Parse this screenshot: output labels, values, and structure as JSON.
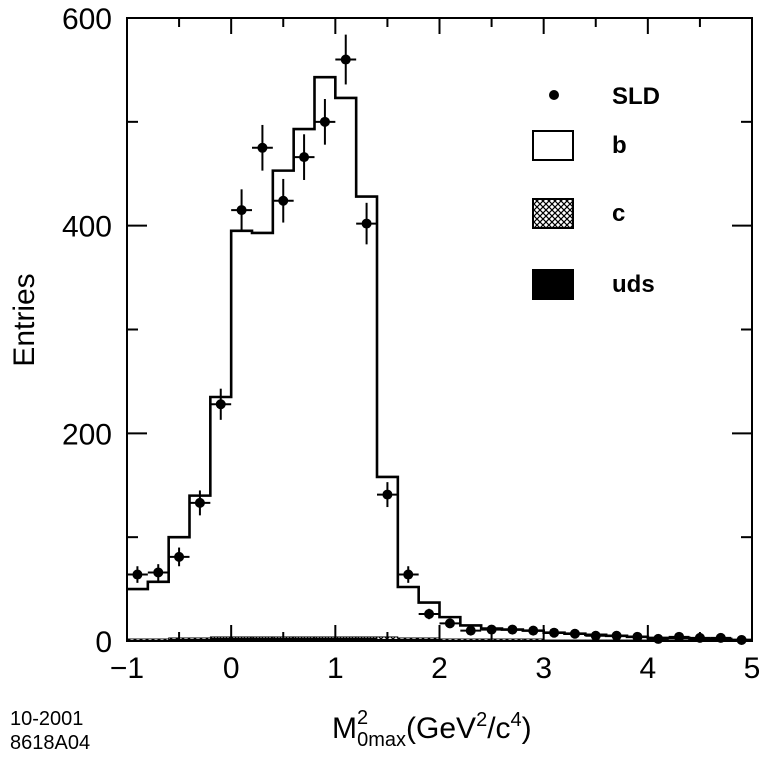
{
  "chart_data": {
    "type": "histogram",
    "xlabel_parts": {
      "base": "M",
      "sup": "2",
      "sub": "0max",
      "unit_open": "(GeV",
      "unit_sup": "2",
      "unit_mid": "/c",
      "unit_sup2": "4",
      "unit_close": ")"
    },
    "ylabel": "Entries",
    "xlim": [
      -1,
      5
    ],
    "ylim": [
      0,
      600
    ],
    "x_ticks": [
      "-1",
      "0",
      "1",
      "2",
      "3",
      "4",
      "5"
    ],
    "y_ticks": [
      "0",
      "200",
      "400",
      "600"
    ],
    "bin_edges": [
      -1.0,
      -0.8,
      -0.6,
      -0.4,
      -0.2,
      0.0,
      0.2,
      0.4,
      0.6,
      0.8,
      1.0,
      1.2,
      1.4,
      1.6,
      1.8,
      2.0,
      2.2,
      2.4,
      2.6,
      2.8,
      3.0,
      3.2,
      3.4,
      3.6,
      3.8,
      4.0,
      4.2,
      4.4,
      4.6,
      4.8,
      5.0
    ],
    "mc_total": [
      50,
      57,
      100,
      140,
      235,
      395,
      393,
      453,
      493,
      543,
      523,
      428,
      158,
      52,
      37,
      23,
      15,
      12,
      11,
      10,
      8,
      7,
      6,
      5,
      4,
      3,
      3,
      2,
      2,
      1
    ],
    "c_component": [
      2,
      2,
      3,
      3,
      4,
      4,
      4,
      4,
      4,
      4,
      4,
      4,
      4,
      3,
      3,
      2,
      2,
      2,
      2,
      2,
      1,
      1,
      1,
      1,
      1,
      1,
      1,
      1,
      1,
      0
    ],
    "uds_component": [
      1,
      1,
      2,
      2,
      3,
      3,
      3,
      3,
      3,
      3,
      3,
      3,
      2,
      2,
      2,
      1,
      1,
      1,
      1,
      1,
      1,
      1,
      1,
      1,
      0,
      0,
      0,
      0,
      0,
      0
    ],
    "sld_data": [
      {
        "x": -0.9,
        "y": 64,
        "err": 8
      },
      {
        "x": -0.7,
        "y": 66,
        "err": 8
      },
      {
        "x": -0.5,
        "y": 81,
        "err": 9
      },
      {
        "x": -0.3,
        "y": 133,
        "err": 12
      },
      {
        "x": -0.1,
        "y": 228,
        "err": 15
      },
      {
        "x": 0.1,
        "y": 415,
        "err": 20
      },
      {
        "x": 0.3,
        "y": 475,
        "err": 22
      },
      {
        "x": 0.5,
        "y": 424,
        "err": 21
      },
      {
        "x": 0.7,
        "y": 466,
        "err": 22
      },
      {
        "x": 0.9,
        "y": 500,
        "err": 22
      },
      {
        "x": 1.1,
        "y": 560,
        "err": 24
      },
      {
        "x": 1.3,
        "y": 402,
        "err": 20
      },
      {
        "x": 1.5,
        "y": 141,
        "err": 12
      },
      {
        "x": 1.7,
        "y": 64,
        "err": 8
      },
      {
        "x": 1.9,
        "y": 26,
        "err": 5
      },
      {
        "x": 2.1,
        "y": 17,
        "err": 4
      },
      {
        "x": 2.3,
        "y": 10,
        "err": 3
      },
      {
        "x": 2.5,
        "y": 11,
        "err": 3
      },
      {
        "x": 2.7,
        "y": 11,
        "err": 3
      },
      {
        "x": 2.9,
        "y": 10,
        "err": 3
      },
      {
        "x": 3.1,
        "y": 8,
        "err": 3
      },
      {
        "x": 3.3,
        "y": 7,
        "err": 3
      },
      {
        "x": 3.5,
        "y": 5,
        "err": 2
      },
      {
        "x": 3.7,
        "y": 5,
        "err": 2
      },
      {
        "x": 3.9,
        "y": 4,
        "err": 2
      },
      {
        "x": 4.1,
        "y": 2,
        "err": 1
      },
      {
        "x": 4.3,
        "y": 4,
        "err": 2
      },
      {
        "x": 4.5,
        "y": 3,
        "err": 2
      },
      {
        "x": 4.7,
        "y": 3,
        "err": 2
      },
      {
        "x": 4.9,
        "y": 1,
        "err": 1
      }
    ],
    "legend": [
      {
        "key": "sld",
        "label": "SLD",
        "style": "dot"
      },
      {
        "key": "b",
        "label": "b",
        "style": "open"
      },
      {
        "key": "c",
        "label": "c",
        "style": "hatched"
      },
      {
        "key": "uds",
        "label": "uds",
        "style": "solid"
      }
    ]
  },
  "figure_code": {
    "date": "10-2001",
    "id": "8618A04"
  }
}
